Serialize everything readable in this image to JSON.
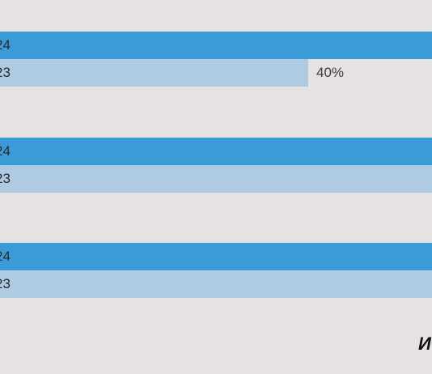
{
  "chart_data": {
    "type": "bar",
    "orientation": "horizontal",
    "series_labels": [
      "24",
      "23"
    ],
    "groups": [
      {
        "bars": [
          {
            "label": "24",
            "value": null
          },
          {
            "label": "23",
            "value": 40,
            "value_label": "40%"
          }
        ]
      },
      {
        "bars": [
          {
            "label": "24",
            "value": null
          },
          {
            "label": "23",
            "value": null
          }
        ]
      },
      {
        "bars": [
          {
            "label": "24",
            "value": null
          },
          {
            "label": "23",
            "value": null
          }
        ]
      }
    ],
    "colors": {
      "y2024": "#3b9bd7",
      "y2023": "#aecbe1"
    }
  },
  "footer": {
    "text": "И"
  }
}
